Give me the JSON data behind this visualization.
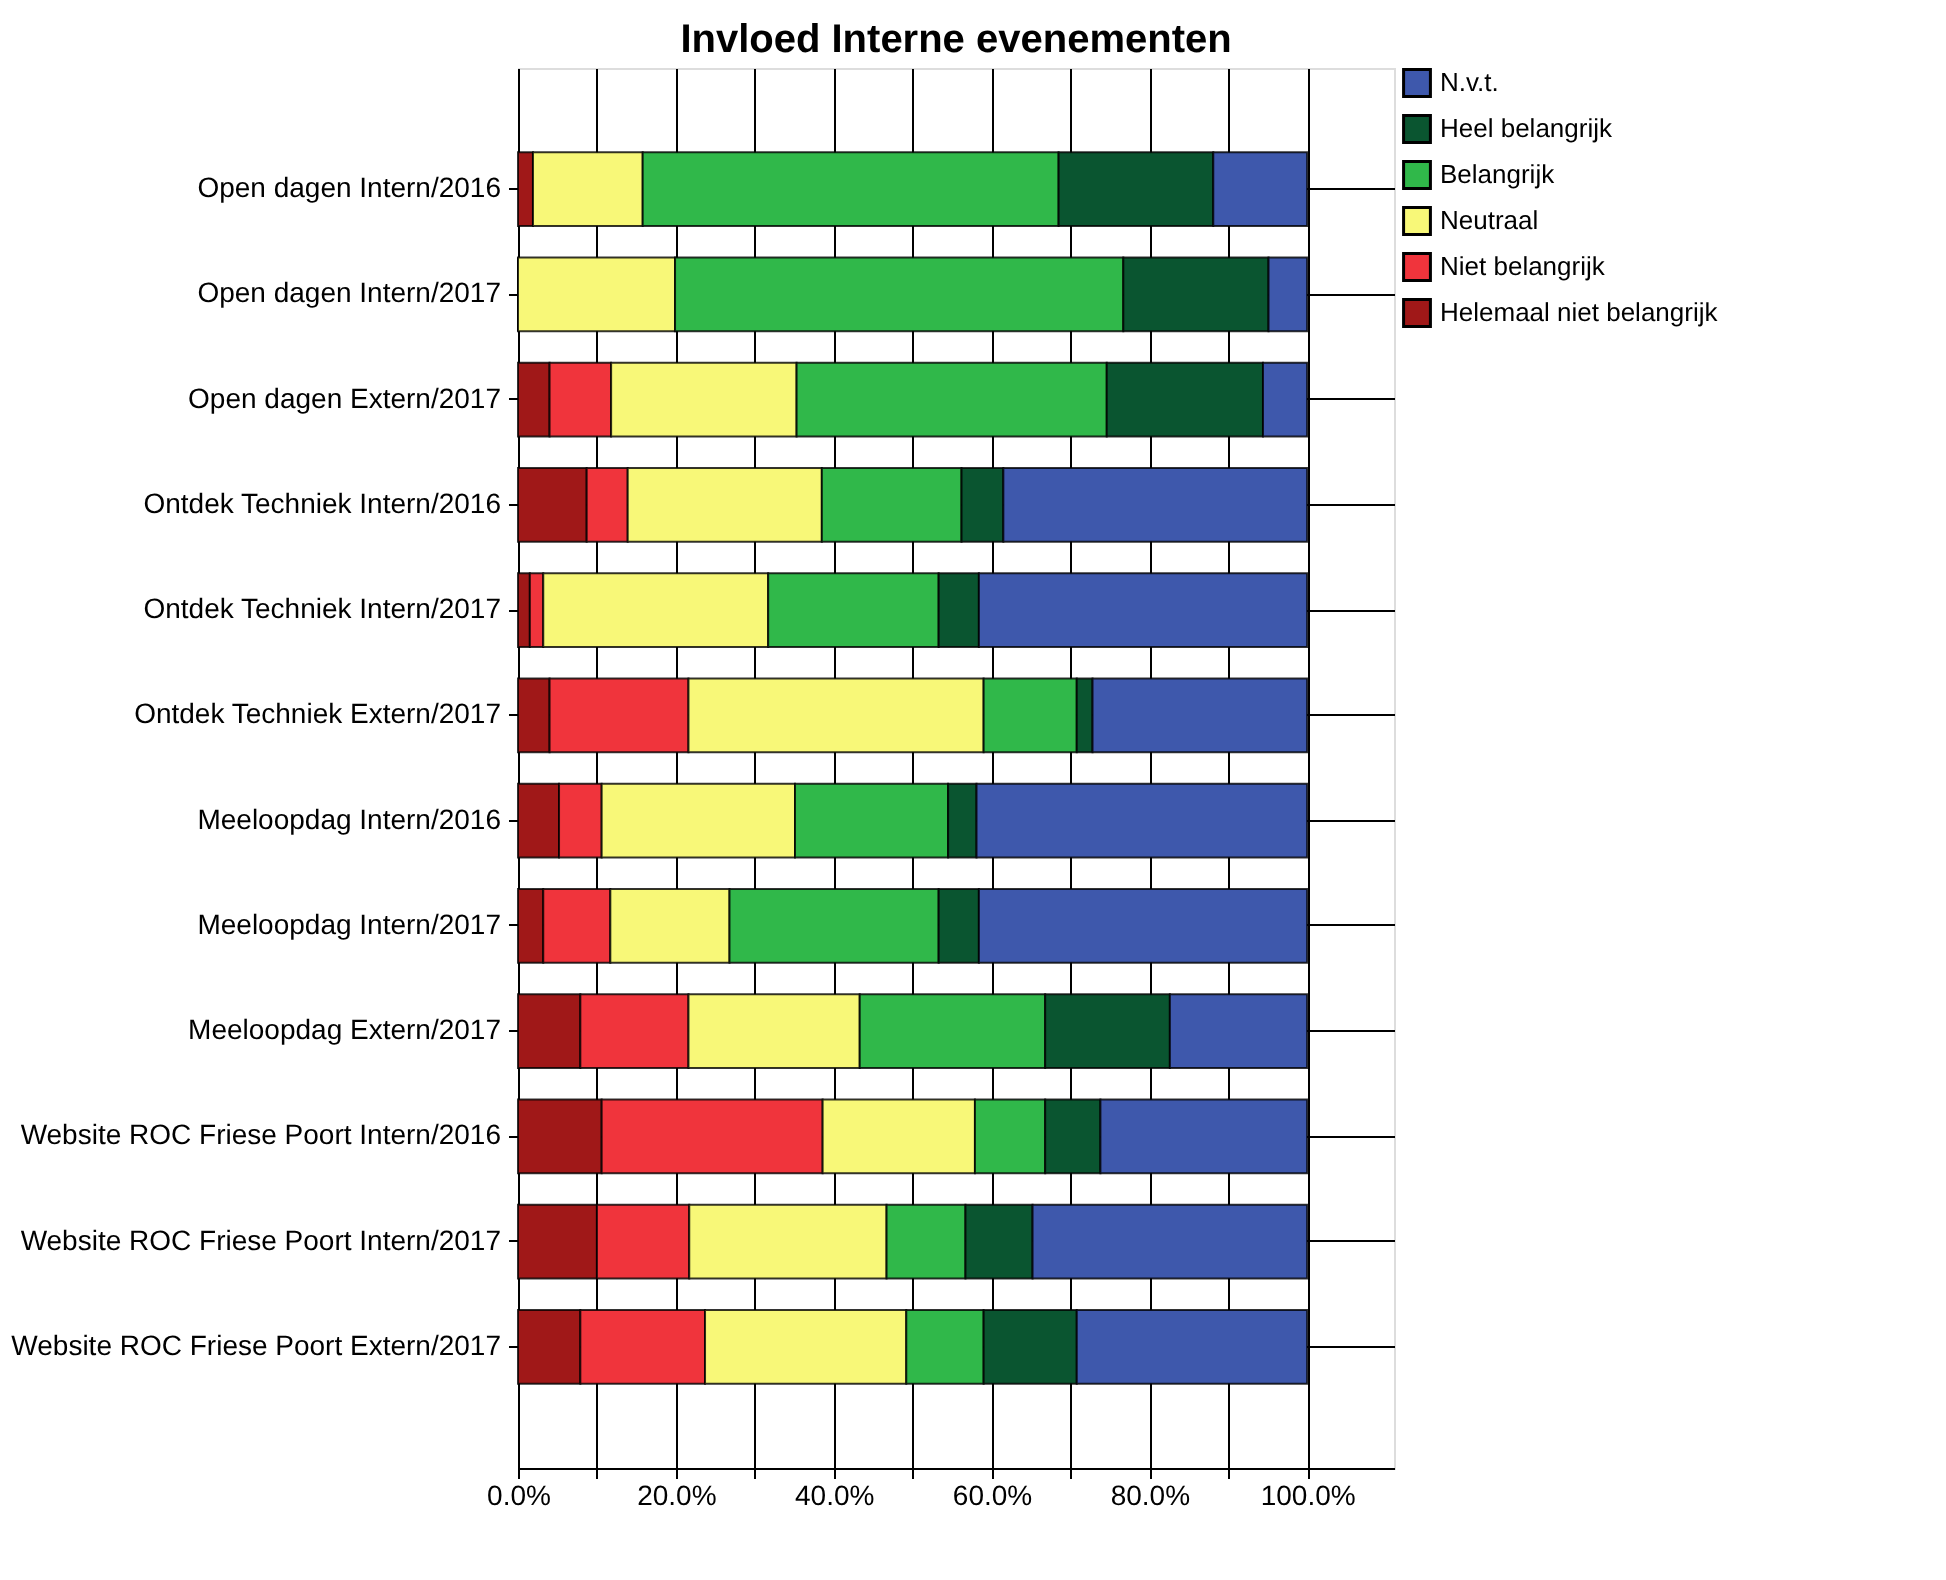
{
  "chart_data": {
    "type": "bar",
    "orientation": "horizontal",
    "stacked": true,
    "title": "Invloed Interne evenementen",
    "categories": [
      "Open dagen Intern/2016",
      "Open dagen Intern/2017",
      "Open dagen Extern/2017",
      "Ontdek Techniek Intern/2016",
      "Ontdek Techniek Intern/2017",
      "Ontdek Techniek Extern/2017",
      "Meeloopdag Intern/2016",
      "Meeloopdag Intern/2017",
      "Meeloopdag Extern/2017",
      "Website ROC Friese Poort Intern/2016",
      "Website ROC Friese Poort Intern/2017",
      "Website ROC Friese Poort Extern/2017"
    ],
    "series": [
      {
        "name": "Helemaal niet belangrijk",
        "color": "#a01818",
        "values": [
          1.9,
          0,
          4.0,
          8.7,
          1.5,
          4.0,
          5.2,
          3.2,
          7.9,
          10.6,
          10.0,
          7.9
        ]
      },
      {
        "name": "Niet belangrijk",
        "color": "#f0343c",
        "values": [
          0,
          0,
          7.8,
          5.2,
          1.7,
          17.6,
          5.4,
          8.5,
          13.7,
          28.0,
          11.7,
          15.8
        ]
      },
      {
        "name": "Neutraal",
        "color": "#f8f878",
        "values": [
          13.9,
          19.9,
          23.5,
          24.6,
          28.5,
          37.4,
          24.5,
          15.1,
          21.7,
          19.3,
          25.0,
          25.5
        ]
      },
      {
        "name": "Belangrijk",
        "color": "#30b84a",
        "values": [
          52.7,
          56.8,
          39.3,
          17.7,
          21.6,
          11.8,
          19.4,
          26.5,
          23.5,
          8.9,
          10.0,
          9.8
        ]
      },
      {
        "name": "Heel belangrijk",
        "color": "#0a5530",
        "values": [
          19.6,
          18.4,
          19.8,
          5.3,
          5.1,
          2.0,
          3.6,
          5.1,
          15.8,
          7.0,
          8.5,
          11.8
        ]
      },
      {
        "name": "N.v.t.",
        "color": "#3e58ac",
        "values": [
          11.9,
          4.9,
          5.6,
          38.5,
          41.6,
          27.2,
          41.9,
          41.6,
          17.4,
          26.2,
          34.8,
          29.2
        ]
      }
    ],
    "xlim": [
      0,
      111
    ],
    "xticks": [
      {
        "value": 0,
        "label": "0.0%"
      },
      {
        "value": 10,
        "label": null
      },
      {
        "value": 20,
        "label": "20.0%"
      },
      {
        "value": 30,
        "label": null
      },
      {
        "value": 40,
        "label": "40.0%"
      },
      {
        "value": 50,
        "label": null
      },
      {
        "value": 60,
        "label": "60.0%"
      },
      {
        "value": 70,
        "label": null
      },
      {
        "value": 80,
        "label": "80.0%"
      },
      {
        "value": 90,
        "label": null
      },
      {
        "value": 100,
        "label": "100.0%"
      }
    ],
    "grid": true,
    "legend": "top right"
  }
}
